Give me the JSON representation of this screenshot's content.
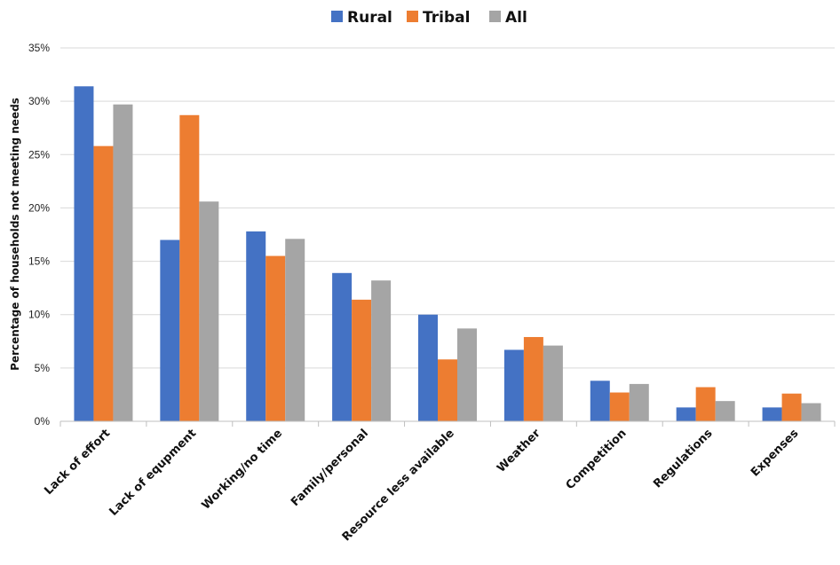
{
  "chart_data": {
    "type": "bar",
    "title": "",
    "xlabel": "",
    "ylabel": "Percentage of households not meeting needs",
    "ylim": [
      0,
      35
    ],
    "ytick_step": 5,
    "ytick_suffix": "%",
    "grid": true,
    "legend_position": "top-center",
    "categories": [
      "Lack of effort",
      "Lack of equpment",
      "Working/no time",
      "Family/personal",
      "Resource less available",
      "Weather",
      "Competition",
      "Regulations",
      "Expenses"
    ],
    "series": [
      {
        "name": "Rural",
        "color": "#4472C4",
        "values": [
          31.4,
          17.0,
          17.8,
          13.9,
          10.0,
          6.7,
          3.8,
          1.3,
          1.3
        ]
      },
      {
        "name": "Tribal",
        "color": "#ED7D31",
        "values": [
          25.8,
          28.7,
          15.5,
          11.4,
          5.8,
          7.9,
          2.7,
          3.2,
          2.6
        ]
      },
      {
        "name": "All",
        "color": "#A5A5A5",
        "values": [
          29.7,
          20.6,
          17.1,
          13.2,
          8.7,
          7.1,
          3.5,
          1.9,
          1.7
        ]
      }
    ]
  }
}
